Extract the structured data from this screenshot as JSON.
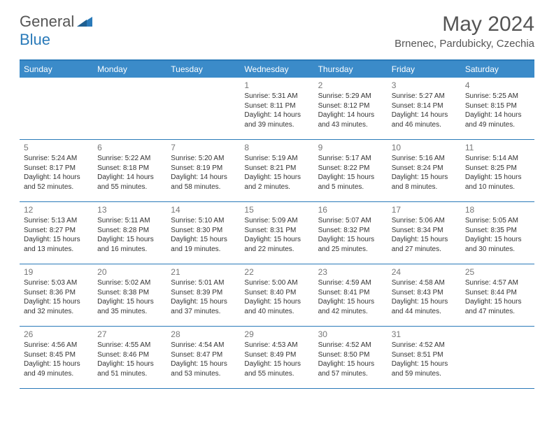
{
  "logo": {
    "text1": "General",
    "text2": "Blue"
  },
  "title": "May 2024",
  "location": "Brnenec, Pardubicky, Czechia",
  "dayNames": [
    "Sunday",
    "Monday",
    "Tuesday",
    "Wednesday",
    "Thursday",
    "Friday",
    "Saturday"
  ],
  "colors": {
    "headerBg": "#3b8bc9",
    "accent": "#2a7ab9",
    "text": "#333333",
    "muted": "#777777"
  },
  "weeks": [
    [
      null,
      null,
      null,
      {
        "n": "1",
        "sr": "5:31 AM",
        "ss": "8:11 PM",
        "d": "14 hours and 39 minutes."
      },
      {
        "n": "2",
        "sr": "5:29 AM",
        "ss": "8:12 PM",
        "d": "14 hours and 43 minutes."
      },
      {
        "n": "3",
        "sr": "5:27 AM",
        "ss": "8:14 PM",
        "d": "14 hours and 46 minutes."
      },
      {
        "n": "4",
        "sr": "5:25 AM",
        "ss": "8:15 PM",
        "d": "14 hours and 49 minutes."
      }
    ],
    [
      {
        "n": "5",
        "sr": "5:24 AM",
        "ss": "8:17 PM",
        "d": "14 hours and 52 minutes."
      },
      {
        "n": "6",
        "sr": "5:22 AM",
        "ss": "8:18 PM",
        "d": "14 hours and 55 minutes."
      },
      {
        "n": "7",
        "sr": "5:20 AM",
        "ss": "8:19 PM",
        "d": "14 hours and 58 minutes."
      },
      {
        "n": "8",
        "sr": "5:19 AM",
        "ss": "8:21 PM",
        "d": "15 hours and 2 minutes."
      },
      {
        "n": "9",
        "sr": "5:17 AM",
        "ss": "8:22 PM",
        "d": "15 hours and 5 minutes."
      },
      {
        "n": "10",
        "sr": "5:16 AM",
        "ss": "8:24 PM",
        "d": "15 hours and 8 minutes."
      },
      {
        "n": "11",
        "sr": "5:14 AM",
        "ss": "8:25 PM",
        "d": "15 hours and 10 minutes."
      }
    ],
    [
      {
        "n": "12",
        "sr": "5:13 AM",
        "ss": "8:27 PM",
        "d": "15 hours and 13 minutes."
      },
      {
        "n": "13",
        "sr": "5:11 AM",
        "ss": "8:28 PM",
        "d": "15 hours and 16 minutes."
      },
      {
        "n": "14",
        "sr": "5:10 AM",
        "ss": "8:30 PM",
        "d": "15 hours and 19 minutes."
      },
      {
        "n": "15",
        "sr": "5:09 AM",
        "ss": "8:31 PM",
        "d": "15 hours and 22 minutes."
      },
      {
        "n": "16",
        "sr": "5:07 AM",
        "ss": "8:32 PM",
        "d": "15 hours and 25 minutes."
      },
      {
        "n": "17",
        "sr": "5:06 AM",
        "ss": "8:34 PM",
        "d": "15 hours and 27 minutes."
      },
      {
        "n": "18",
        "sr": "5:05 AM",
        "ss": "8:35 PM",
        "d": "15 hours and 30 minutes."
      }
    ],
    [
      {
        "n": "19",
        "sr": "5:03 AM",
        "ss": "8:36 PM",
        "d": "15 hours and 32 minutes."
      },
      {
        "n": "20",
        "sr": "5:02 AM",
        "ss": "8:38 PM",
        "d": "15 hours and 35 minutes."
      },
      {
        "n": "21",
        "sr": "5:01 AM",
        "ss": "8:39 PM",
        "d": "15 hours and 37 minutes."
      },
      {
        "n": "22",
        "sr": "5:00 AM",
        "ss": "8:40 PM",
        "d": "15 hours and 40 minutes."
      },
      {
        "n": "23",
        "sr": "4:59 AM",
        "ss": "8:41 PM",
        "d": "15 hours and 42 minutes."
      },
      {
        "n": "24",
        "sr": "4:58 AM",
        "ss": "8:43 PM",
        "d": "15 hours and 44 minutes."
      },
      {
        "n": "25",
        "sr": "4:57 AM",
        "ss": "8:44 PM",
        "d": "15 hours and 47 minutes."
      }
    ],
    [
      {
        "n": "26",
        "sr": "4:56 AM",
        "ss": "8:45 PM",
        "d": "15 hours and 49 minutes."
      },
      {
        "n": "27",
        "sr": "4:55 AM",
        "ss": "8:46 PM",
        "d": "15 hours and 51 minutes."
      },
      {
        "n": "28",
        "sr": "4:54 AM",
        "ss": "8:47 PM",
        "d": "15 hours and 53 minutes."
      },
      {
        "n": "29",
        "sr": "4:53 AM",
        "ss": "8:49 PM",
        "d": "15 hours and 55 minutes."
      },
      {
        "n": "30",
        "sr": "4:52 AM",
        "ss": "8:50 PM",
        "d": "15 hours and 57 minutes."
      },
      {
        "n": "31",
        "sr": "4:52 AM",
        "ss": "8:51 PM",
        "d": "15 hours and 59 minutes."
      },
      null
    ]
  ],
  "labels": {
    "sunrise": "Sunrise:",
    "sunset": "Sunset:",
    "daylight": "Daylight:"
  }
}
